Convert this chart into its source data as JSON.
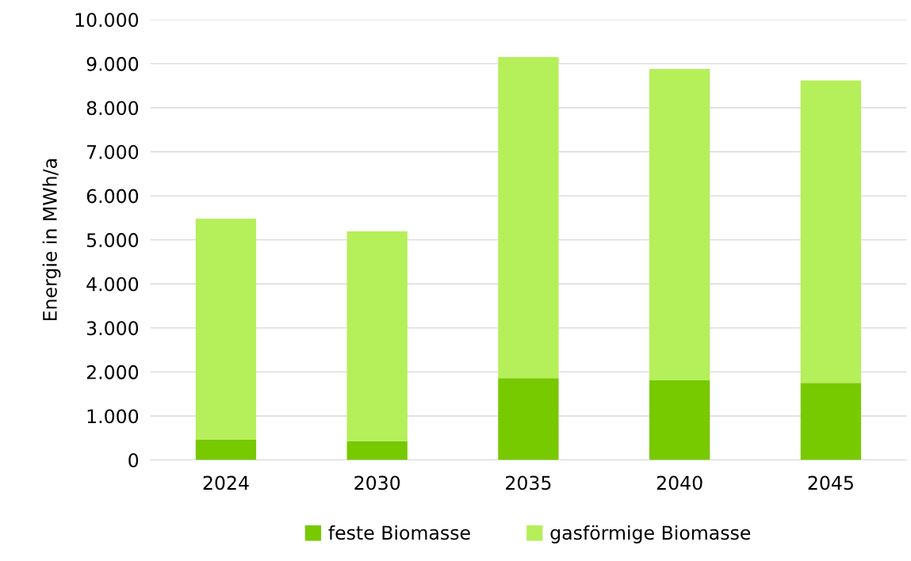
{
  "chart_data": {
    "type": "bar",
    "stacked": true,
    "ylabel": "Energie in MWh/a",
    "categories": [
      "2024",
      "2030",
      "2035",
      "2040",
      "2045"
    ],
    "series": [
      {
        "name": "feste Biomasse",
        "color": "#77c900",
        "values": [
          470,
          430,
          1860,
          1810,
          1750
        ]
      },
      {
        "name": "gasförmige Biomasse",
        "color": "#b5ef5a",
        "values": [
          5010,
          4760,
          7290,
          7070,
          6870
        ]
      }
    ],
    "ylim": [
      0,
      10000
    ],
    "yticks": [
      {
        "value": 0,
        "label": "0"
      },
      {
        "value": 1000,
        "label": "1.000"
      },
      {
        "value": 2000,
        "label": "2.000"
      },
      {
        "value": 3000,
        "label": "3.000"
      },
      {
        "value": 4000,
        "label": "4.000"
      },
      {
        "value": 5000,
        "label": "5.000"
      },
      {
        "value": 6000,
        "label": "6.000"
      },
      {
        "value": 7000,
        "label": "7.000"
      },
      {
        "value": 8000,
        "label": "8.000"
      },
      {
        "value": 9000,
        "label": "9.000"
      },
      {
        "value": 10000,
        "label": "10.000"
      }
    ],
    "grid": "y",
    "legend": "bottom"
  }
}
